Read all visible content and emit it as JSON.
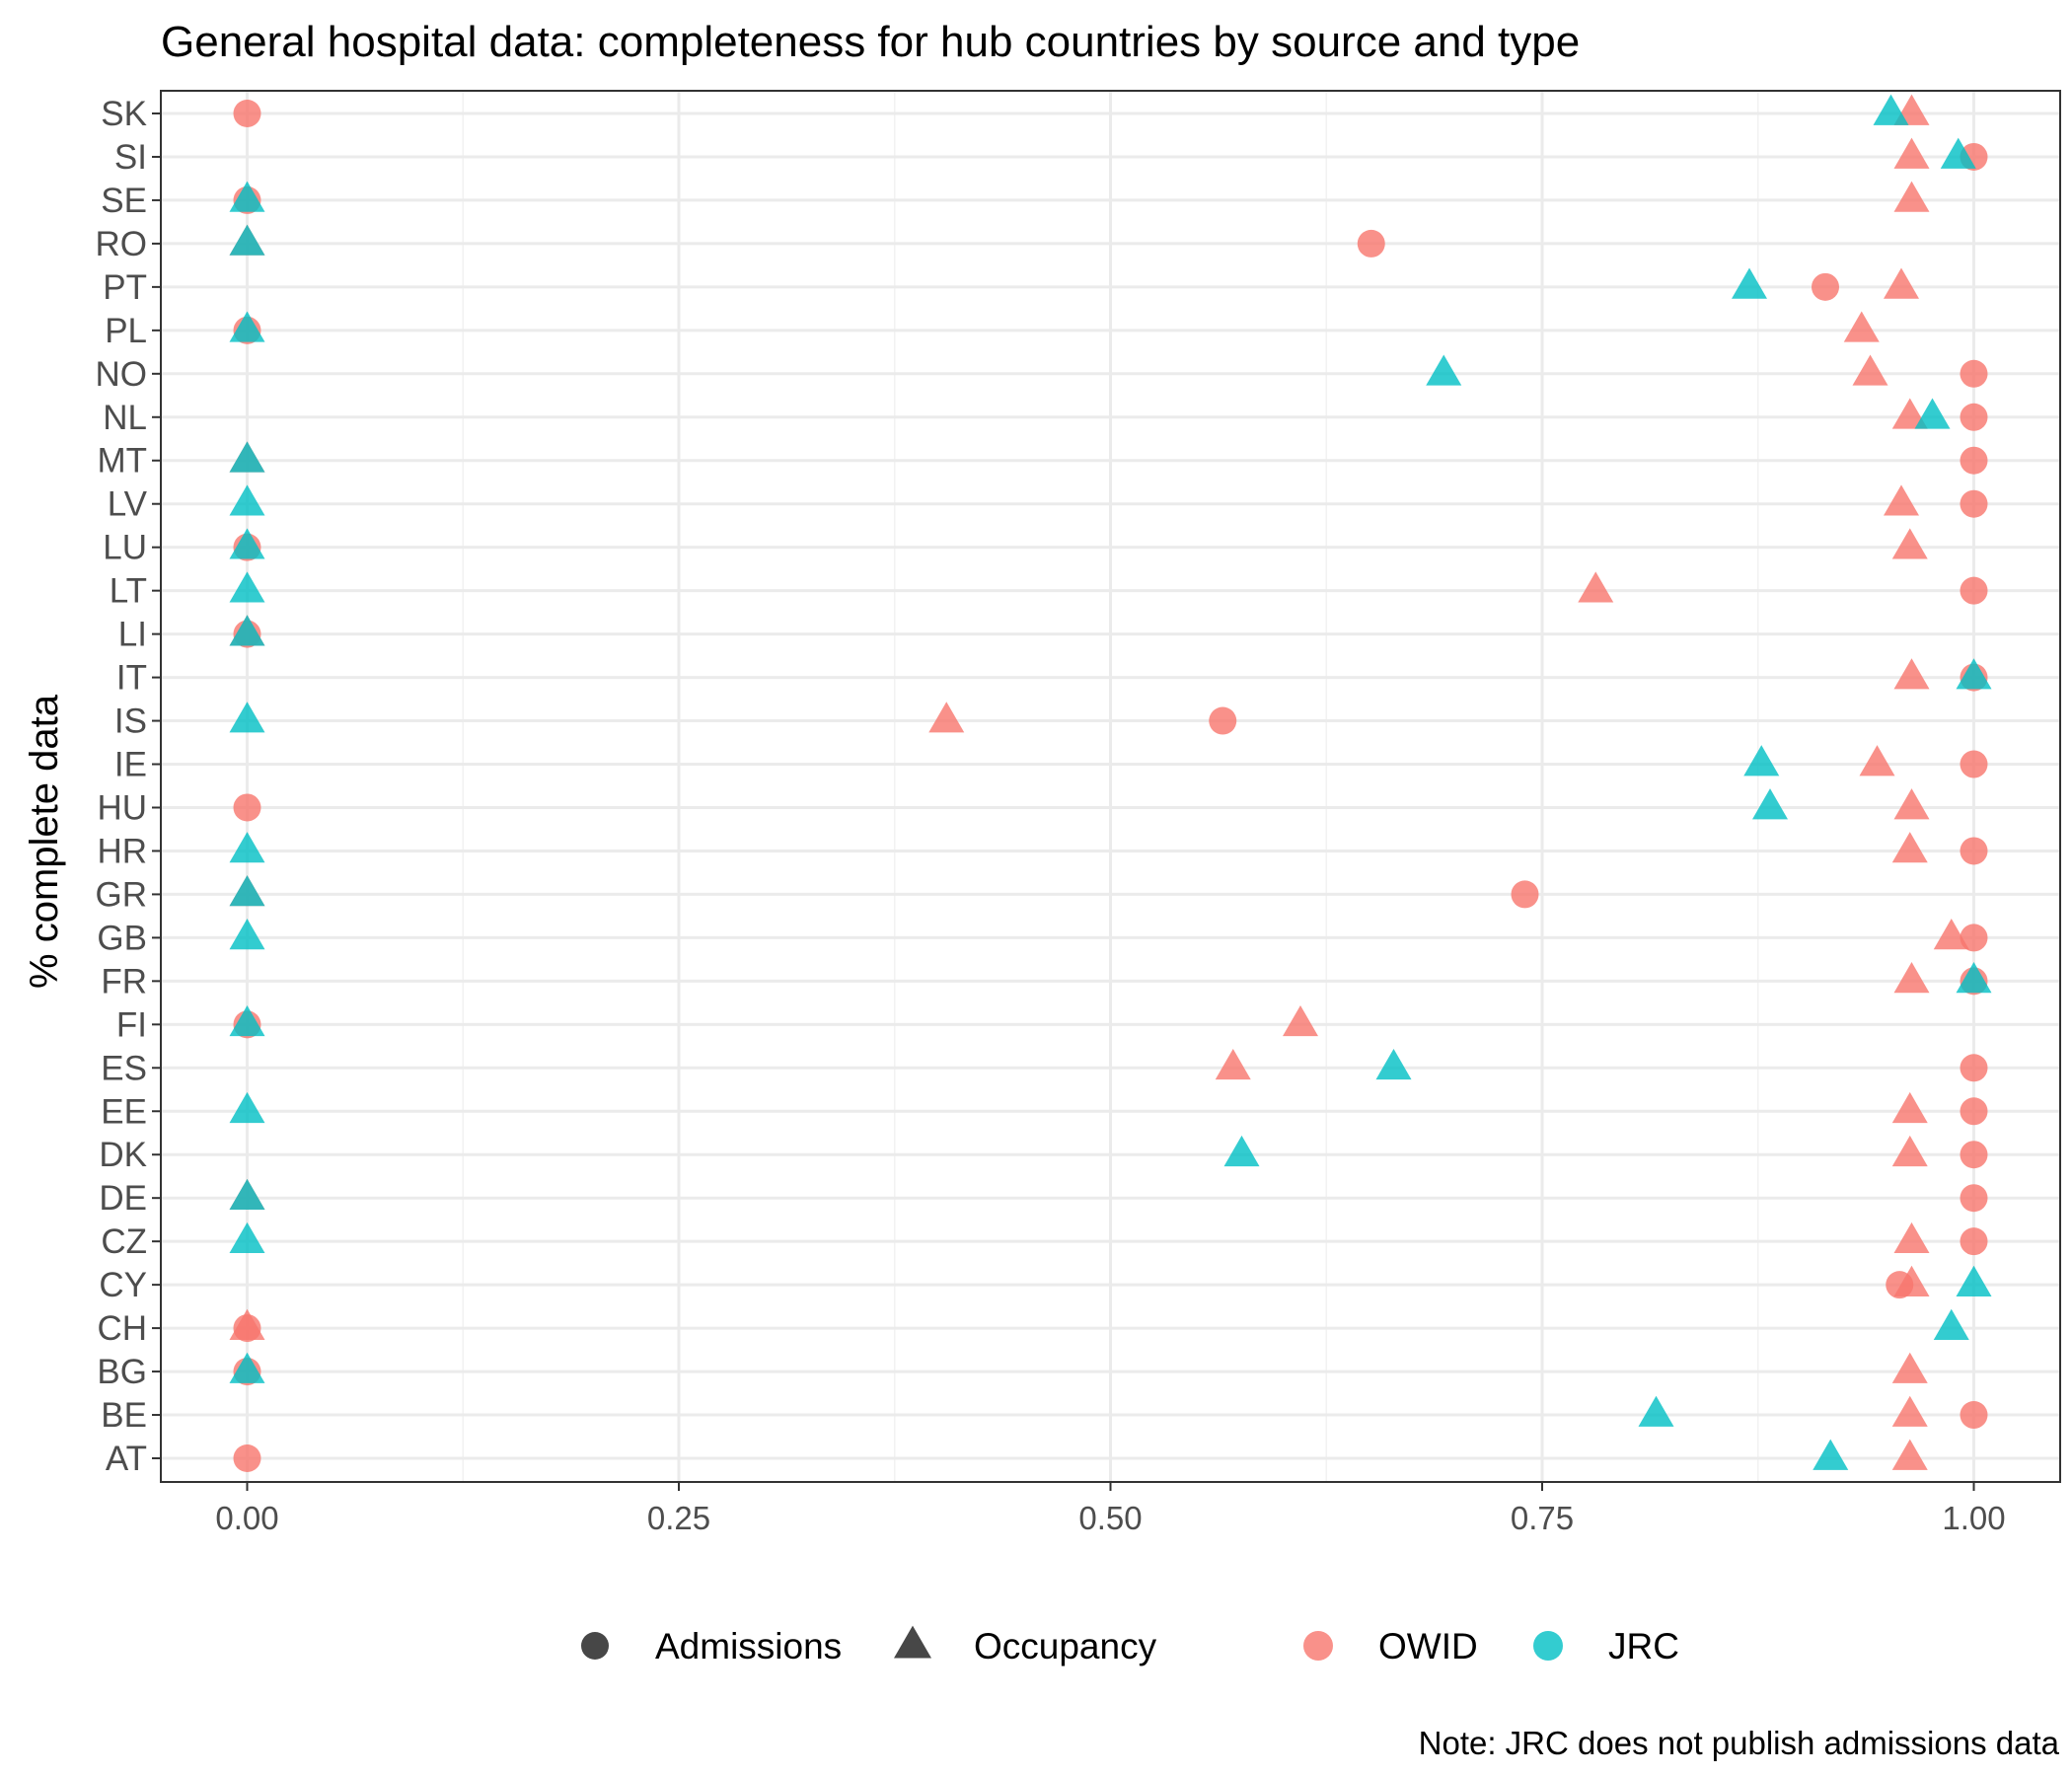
{
  "chart_data": {
    "type": "scatter",
    "title": "General hospital data: completeness for hub countries by source and type",
    "ylabel": "% complete data",
    "xlabel": "",
    "caption": "Note: JRC does not publish admissions data",
    "xlim": [
      -0.05,
      1.05
    ],
    "x_ticks": [
      0,
      0.25,
      0.5,
      0.75,
      1
    ],
    "x_tick_labels": [
      "0.00",
      "0.25",
      "0.50",
      "0.75",
      "1.00"
    ],
    "categories": [
      "AT",
      "BE",
      "BG",
      "CH",
      "CY",
      "CZ",
      "DE",
      "DK",
      "EE",
      "ES",
      "FI",
      "FR",
      "GB",
      "GR",
      "HR",
      "HU",
      "IE",
      "IS",
      "IT",
      "LI",
      "LT",
      "LU",
      "LV",
      "MT",
      "NL",
      "NO",
      "PL",
      "PT",
      "RO",
      "SE",
      "SI",
      "SK"
    ],
    "grid": true,
    "legend_position": "bottom",
    "shape_legend": [
      {
        "label": "Admissions",
        "shape": "circle"
      },
      {
        "label": "Occupancy",
        "shape": "triangle"
      }
    ],
    "color_legend": [
      {
        "label": "OWID",
        "color": "#F8766D"
      },
      {
        "label": "JRC",
        "color": "#00BFC4"
      }
    ],
    "series": [
      {
        "name": "OWID",
        "type": "Admissions",
        "color": "#F8766D",
        "shape": "circle",
        "points": [
          {
            "country": "SK",
            "x": 0.0
          },
          {
            "country": "SI",
            "x": 1.0
          },
          {
            "country": "SE",
            "x": 0.0
          },
          {
            "country": "RO",
            "x": 0.651
          },
          {
            "country": "PT",
            "x": 0.914
          },
          {
            "country": "PL",
            "x": 0.0
          },
          {
            "country": "NO",
            "x": 1.0
          },
          {
            "country": "NL",
            "x": 1.0
          },
          {
            "country": "MT",
            "x": 1.0
          },
          {
            "country": "LV",
            "x": 1.0
          },
          {
            "country": "LU",
            "x": 0.0
          },
          {
            "country": "LT",
            "x": 1.0
          },
          {
            "country": "LI",
            "x": 0.0
          },
          {
            "country": "IT",
            "x": 1.0
          },
          {
            "country": "IS",
            "x": 0.565
          },
          {
            "country": "IE",
            "x": 1.0
          },
          {
            "country": "HU",
            "x": 0.0
          },
          {
            "country": "HR",
            "x": 1.0
          },
          {
            "country": "GR",
            "x": 0.74
          },
          {
            "country": "GB",
            "x": 1.0
          },
          {
            "country": "FR",
            "x": 1.0
          },
          {
            "country": "FI",
            "x": 0.0
          },
          {
            "country": "ES",
            "x": 1.0
          },
          {
            "country": "EE",
            "x": 1.0
          },
          {
            "country": "DK",
            "x": 1.0
          },
          {
            "country": "DE",
            "x": 1.0
          },
          {
            "country": "CZ",
            "x": 1.0
          },
          {
            "country": "CY",
            "x": 0.957
          },
          {
            "country": "CH",
            "x": 0.0
          },
          {
            "country": "BG",
            "x": 0.0
          },
          {
            "country": "BE",
            "x": 1.0
          },
          {
            "country": "AT",
            "x": 0.0
          }
        ]
      },
      {
        "name": "OWID",
        "type": "Occupancy",
        "color": "#F8766D",
        "shape": "triangle",
        "points": [
          {
            "country": "SK",
            "x": 0.964
          },
          {
            "country": "SI",
            "x": 0.964
          },
          {
            "country": "SE",
            "x": 0.964
          },
          {
            "country": "RO",
            "x": 0.0
          },
          {
            "country": "PT",
            "x": 0.958
          },
          {
            "country": "PL",
            "x": 0.935
          },
          {
            "country": "NO",
            "x": 0.94
          },
          {
            "country": "NL",
            "x": 0.963
          },
          {
            "country": "MT",
            "x": 0.0
          },
          {
            "country": "LV",
            "x": 0.958
          },
          {
            "country": "LU",
            "x": 0.963
          },
          {
            "country": "LT",
            "x": 0.781
          },
          {
            "country": "LI",
            "x": 0.0
          },
          {
            "country": "IT",
            "x": 0.964
          },
          {
            "country": "IS",
            "x": 0.405
          },
          {
            "country": "IE",
            "x": 0.944
          },
          {
            "country": "HU",
            "x": 0.964
          },
          {
            "country": "HR",
            "x": 0.963
          },
          {
            "country": "GR",
            "x": 0.0
          },
          {
            "country": "GB",
            "x": 0.987
          },
          {
            "country": "FR",
            "x": 0.964
          },
          {
            "country": "FI",
            "x": 0.61
          },
          {
            "country": "ES",
            "x": 0.571
          },
          {
            "country": "EE",
            "x": 0.963
          },
          {
            "country": "DK",
            "x": 0.963
          },
          {
            "country": "DE",
            "x": 0.0
          },
          {
            "country": "CZ",
            "x": 0.964
          },
          {
            "country": "CY",
            "x": 0.964
          },
          {
            "country": "CH",
            "x": 0.0
          },
          {
            "country": "BG",
            "x": 0.963
          },
          {
            "country": "BE",
            "x": 0.963
          },
          {
            "country": "AT",
            "x": 0.963
          }
        ]
      },
      {
        "name": "JRC",
        "type": "Occupancy",
        "color": "#00BFC4",
        "shape": "triangle",
        "points": [
          {
            "country": "SK",
            "x": 0.952
          },
          {
            "country": "SI",
            "x": 0.991
          },
          {
            "country": "SE",
            "x": 0.0
          },
          {
            "country": "RO",
            "x": 0.0
          },
          {
            "country": "PT",
            "x": 0.87
          },
          {
            "country": "PL",
            "x": 0.0
          },
          {
            "country": "NO",
            "x": 0.693
          },
          {
            "country": "NL",
            "x": 0.976
          },
          {
            "country": "MT",
            "x": 0.0
          },
          {
            "country": "LV",
            "x": 0.0
          },
          {
            "country": "LU",
            "x": 0.0
          },
          {
            "country": "LT",
            "x": 0.0
          },
          {
            "country": "LI",
            "x": 0.0
          },
          {
            "country": "IT",
            "x": 1.0
          },
          {
            "country": "IS",
            "x": 0.0
          },
          {
            "country": "IE",
            "x": 0.877
          },
          {
            "country": "HU",
            "x": 0.882
          },
          {
            "country": "HR",
            "x": 0.0
          },
          {
            "country": "GR",
            "x": 0.0
          },
          {
            "country": "GB",
            "x": 0.0
          },
          {
            "country": "FR",
            "x": 1.0
          },
          {
            "country": "FI",
            "x": 0.0
          },
          {
            "country": "ES",
            "x": 0.664
          },
          {
            "country": "EE",
            "x": 0.0
          },
          {
            "country": "DK",
            "x": 0.576
          },
          {
            "country": "DE",
            "x": 0.0
          },
          {
            "country": "CZ",
            "x": 0.0
          },
          {
            "country": "CY",
            "x": 1.0
          },
          {
            "country": "CH",
            "x": 0.987
          },
          {
            "country": "BG",
            "x": 0.0
          },
          {
            "country": "BE",
            "x": 0.816
          },
          {
            "country": "AT",
            "x": 0.917
          }
        ]
      }
    ]
  }
}
